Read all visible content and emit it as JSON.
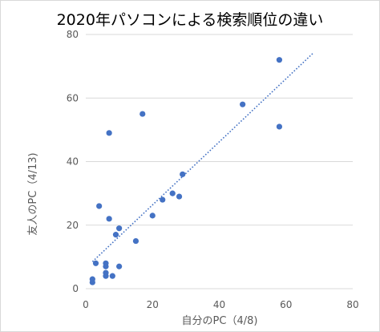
{
  "chart_data": {
    "type": "scatter",
    "title": "2020年パソコンによる検索順位の違い",
    "xlabel": "自分のPC（4/8)",
    "ylabel": "友人のPC（4/13)",
    "xlim": [
      0,
      80
    ],
    "ylim": [
      0,
      80
    ],
    "x_ticks": [
      0,
      20,
      40,
      60,
      80
    ],
    "y_ticks": [
      0,
      20,
      40,
      60,
      80
    ],
    "x_tick_labels": [
      "0",
      "20",
      "40",
      "60",
      "80"
    ],
    "y_tick_labels": [
      "0",
      "20",
      "40",
      "60",
      "80"
    ],
    "grid": "horizontal",
    "legend": "none",
    "series": [
      {
        "points": [
          [
            2,
            2
          ],
          [
            2,
            3
          ],
          [
            3,
            8
          ],
          [
            4,
            26
          ],
          [
            6,
            4
          ],
          [
            6,
            5
          ],
          [
            6,
            7
          ],
          [
            6,
            8
          ],
          [
            7,
            22
          ],
          [
            7,
            49
          ],
          [
            8,
            4
          ],
          [
            9,
            17
          ],
          [
            10,
            19
          ],
          [
            10,
            7
          ],
          [
            15,
            15
          ],
          [
            17,
            55
          ],
          [
            20,
            23
          ],
          [
            23,
            28
          ],
          [
            26,
            30
          ],
          [
            28,
            29
          ],
          [
            29,
            36
          ],
          [
            47,
            58
          ],
          [
            58,
            51
          ],
          [
            58,
            72
          ]
        ]
      }
    ],
    "trendline": {
      "type": "linear",
      "x_range": [
        2,
        68
      ],
      "y_range": [
        8.5,
        74
      ]
    },
    "colors": {
      "points": "#4472c4",
      "trendline": "#4472c4",
      "gridlines": "#d9d9d9",
      "text": "#595959"
    }
  }
}
